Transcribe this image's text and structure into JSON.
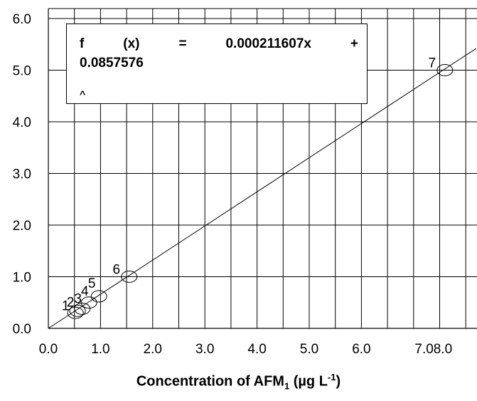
{
  "chart_data": {
    "type": "scatter",
    "title": "",
    "xlabel": {
      "prefix": "Concentration of AFM",
      "sub": "1",
      "mid": " (µg L",
      "sup": "-1",
      "suffix": ")"
    },
    "ylabel": "",
    "xlim": [
      0,
      8.2
    ],
    "ylim": [
      0,
      6.0
    ],
    "grid": true,
    "x_ticks": [
      {
        "value": 0,
        "label": "0.0"
      },
      {
        "value": 1,
        "label": "1.0"
      },
      {
        "value": 2,
        "label": "2.0"
      },
      {
        "value": 3,
        "label": "3.0"
      },
      {
        "value": 4,
        "label": "4.0"
      },
      {
        "value": 5,
        "label": "5.0"
      },
      {
        "value": 6,
        "label": "6.0"
      },
      {
        "value": 7,
        "label": "7.0"
      },
      {
        "value": 8,
        "label": "8.0"
      }
    ],
    "y_ticks": [
      {
        "value": 0,
        "label": "0.0"
      },
      {
        "value": 1,
        "label": "1.0"
      },
      {
        "value": 2,
        "label": "2.0"
      },
      {
        "value": 3,
        "label": "3.0"
      },
      {
        "value": 4,
        "label": "4.0"
      },
      {
        "value": 5,
        "label": "5.0"
      },
      {
        "value": 6,
        "label": "6.0"
      }
    ],
    "points": [
      {
        "label": "1",
        "x": 0.52,
        "y": 0.3
      },
      {
        "label": "2",
        "x": 0.56,
        "y": 0.34
      },
      {
        "label": "3",
        "x": 0.65,
        "y": 0.38
      },
      {
        "label": "4",
        "x": 0.78,
        "y": 0.5
      },
      {
        "label": "5",
        "x": 0.97,
        "y": 0.62
      },
      {
        "label": "6",
        "x": 1.55,
        "y": 1.0
      },
      {
        "label": "7",
        "x": 7.6,
        "y": 5.0
      }
    ],
    "fit_line": {
      "x": [
        0,
        8.2
      ],
      "y": [
        0,
        5.42
      ]
    },
    "equation": {
      "line1": [
        "f",
        "(x)",
        "=",
        "0.000211607x",
        "+"
      ],
      "line2": "0.0857576",
      "line3": "^"
    }
  }
}
